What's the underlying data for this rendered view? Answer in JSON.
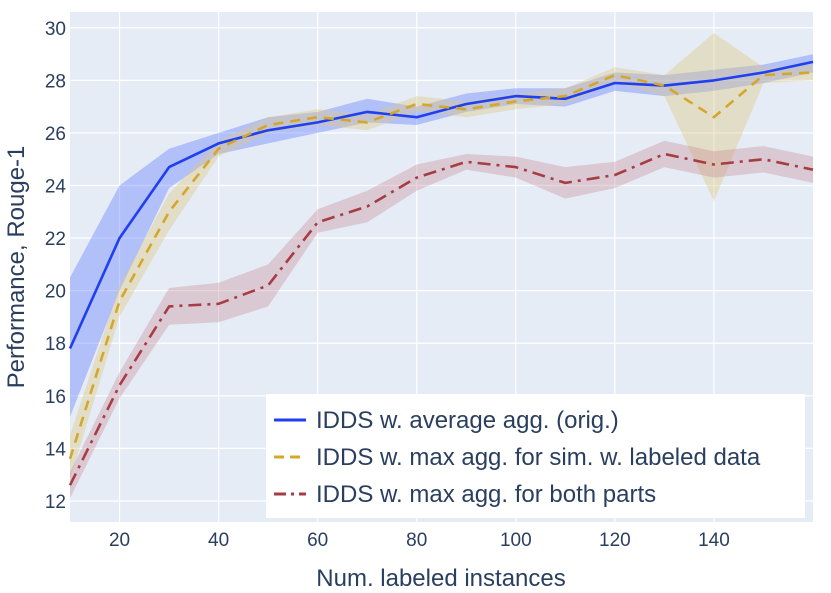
{
  "chart_data": {
    "type": "line",
    "title": "",
    "xlabel": "Num. labeled instances",
    "ylabel": "Performance, Rouge-1",
    "xlim": [
      10,
      160
    ],
    "ylim": [
      11.2,
      30.6
    ],
    "xticks": [
      20,
      40,
      60,
      80,
      100,
      120,
      140
    ],
    "yticks": [
      12,
      14,
      16,
      18,
      20,
      22,
      24,
      26,
      28,
      30
    ],
    "grid": true,
    "legend_position": "bottom-right",
    "x": [
      10,
      20,
      30,
      40,
      50,
      60,
      70,
      80,
      90,
      100,
      110,
      120,
      130,
      140,
      150,
      160
    ],
    "series": [
      {
        "name": "IDDS w. average agg. (orig.)",
        "color": "#1f3ff0",
        "band_color": "rgba(99,128,255,0.40)",
        "dash": "solid",
        "values": [
          17.8,
          22.0,
          24.7,
          25.6,
          26.1,
          26.4,
          26.8,
          26.6,
          27.1,
          27.4,
          27.3,
          27.9,
          27.8,
          28.0,
          28.3,
          28.7
        ],
        "lower": [
          15.2,
          20.0,
          23.9,
          25.2,
          25.6,
          26.0,
          26.4,
          26.3,
          26.8,
          27.1,
          27.0,
          27.6,
          27.4,
          27.6,
          27.9,
          28.3
        ],
        "upper": [
          20.5,
          24.0,
          25.4,
          26.0,
          26.6,
          26.8,
          27.3,
          27.0,
          27.5,
          27.7,
          27.7,
          28.3,
          28.2,
          28.4,
          28.6,
          29.0
        ]
      },
      {
        "name": "IDDS w. max agg. for sim. w. labeled data",
        "color": "#d4a72c",
        "band_color": "rgba(222,200,130,0.40)",
        "dash": "dashed",
        "values": [
          13.6,
          19.6,
          23.0,
          25.4,
          26.3,
          26.6,
          26.4,
          27.1,
          26.9,
          27.2,
          27.4,
          28.2,
          27.8,
          26.6,
          28.2,
          28.3
        ],
        "lower": [
          12.8,
          19.0,
          22.3,
          25.1,
          26.0,
          26.3,
          26.1,
          26.8,
          26.6,
          26.9,
          27.1,
          27.9,
          27.4,
          23.4,
          27.9,
          28.0
        ],
        "upper": [
          14.5,
          20.2,
          23.7,
          25.7,
          26.6,
          26.9,
          26.7,
          27.4,
          27.2,
          27.5,
          27.7,
          28.5,
          28.2,
          29.8,
          28.5,
          28.6
        ]
      },
      {
        "name": "IDDS w. max agg. for both parts",
        "color": "#a63d44",
        "band_color": "rgba(196,126,140,0.33)",
        "dash": "dashdot",
        "values": [
          12.6,
          16.4,
          19.4,
          19.5,
          20.2,
          22.6,
          23.2,
          24.3,
          24.9,
          24.7,
          24.1,
          24.4,
          25.2,
          24.8,
          25.0,
          24.6
        ],
        "lower": [
          12.1,
          15.9,
          18.7,
          18.8,
          19.4,
          22.2,
          22.6,
          23.8,
          24.6,
          24.3,
          23.5,
          23.9,
          24.7,
          24.3,
          24.5,
          24.1
        ],
        "upper": [
          13.1,
          16.9,
          20.1,
          20.3,
          21.0,
          23.1,
          23.8,
          24.8,
          25.2,
          25.1,
          24.7,
          24.9,
          25.7,
          25.3,
          25.5,
          25.1
        ]
      }
    ]
  }
}
